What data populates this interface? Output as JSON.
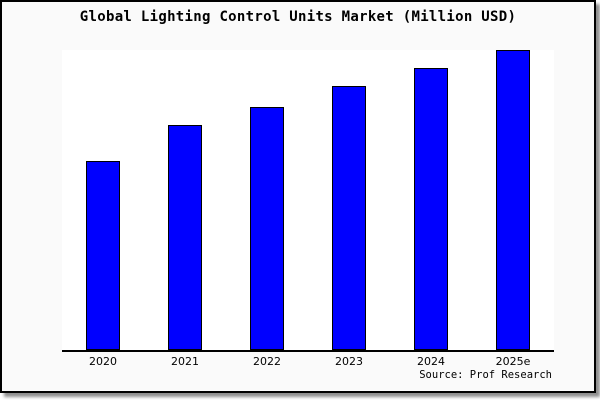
{
  "figure": {
    "title": "Global Lighting Control Units Market (Million USD)",
    "source": "Source: Prof Research"
  },
  "colors": {
    "figure_background": "#fafafa",
    "plot_background": "#ffffff",
    "figure_border": "#000000",
    "bar_fill": "#0000ff",
    "bar_edge": "#000000",
    "axis_line": "#000000",
    "text": "#000000"
  },
  "chart_data": {
    "type": "bar",
    "title": "Global Lighting Control Units Market (Million USD)",
    "categories": [
      "2020",
      "2021",
      "2022",
      "2023",
      "2024",
      "2025e"
    ],
    "values": [
      63,
      75,
      81,
      88,
      94,
      100
    ],
    "values_note": "no y-axis ticks or value labels shown; values estimated as percent of tallest bar (2025e = 100)",
    "xlabel": "",
    "ylabel": "",
    "ylim": [
      0,
      100
    ],
    "grid": false,
    "legend": false,
    "y_axis_visible": false,
    "bar_color": "#0000ff",
    "source": "Source: Prof Research"
  }
}
